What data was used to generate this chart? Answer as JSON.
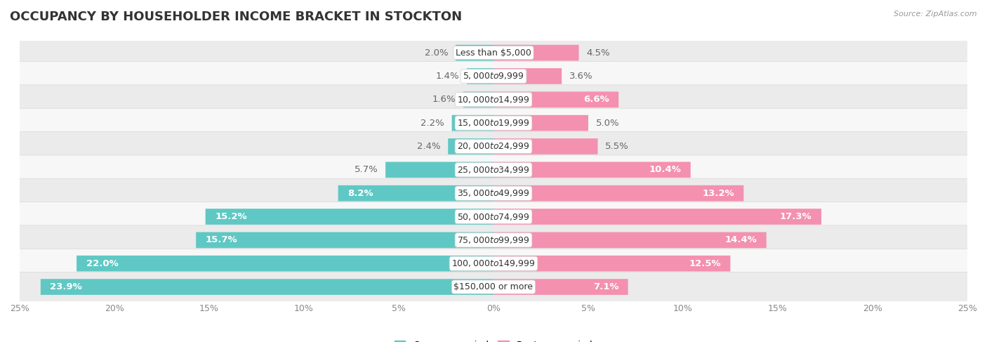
{
  "title": "OCCUPANCY BY HOUSEHOLDER INCOME BRACKET IN STOCKTON",
  "source": "Source: ZipAtlas.com",
  "categories": [
    "Less than $5,000",
    "$5,000 to $9,999",
    "$10,000 to $14,999",
    "$15,000 to $19,999",
    "$20,000 to $24,999",
    "$25,000 to $34,999",
    "$35,000 to $49,999",
    "$50,000 to $74,999",
    "$75,000 to $99,999",
    "$100,000 to $149,999",
    "$150,000 or more"
  ],
  "owner_values": [
    2.0,
    1.4,
    1.6,
    2.2,
    2.4,
    5.7,
    8.2,
    15.2,
    15.7,
    22.0,
    23.9
  ],
  "renter_values": [
    4.5,
    3.6,
    6.6,
    5.0,
    5.5,
    10.4,
    13.2,
    17.3,
    14.4,
    12.5,
    7.1
  ],
  "owner_color": "#5fc8c4",
  "renter_color": "#f490b0",
  "row_color_light": "#f7f7f7",
  "row_color_dark": "#ebebeb",
  "row_border_color": "#d8d8d8",
  "max_value": 25.0,
  "title_fontsize": 13,
  "label_fontsize": 9.5,
  "category_fontsize": 9,
  "tick_fontsize": 9,
  "legend_fontsize": 9.5,
  "background_color": "#ffffff",
  "title_color": "#333333",
  "source_color": "#999999",
  "label_color_outside": "#666666",
  "label_color_inside": "#ffffff",
  "inside_threshold": 6.0
}
